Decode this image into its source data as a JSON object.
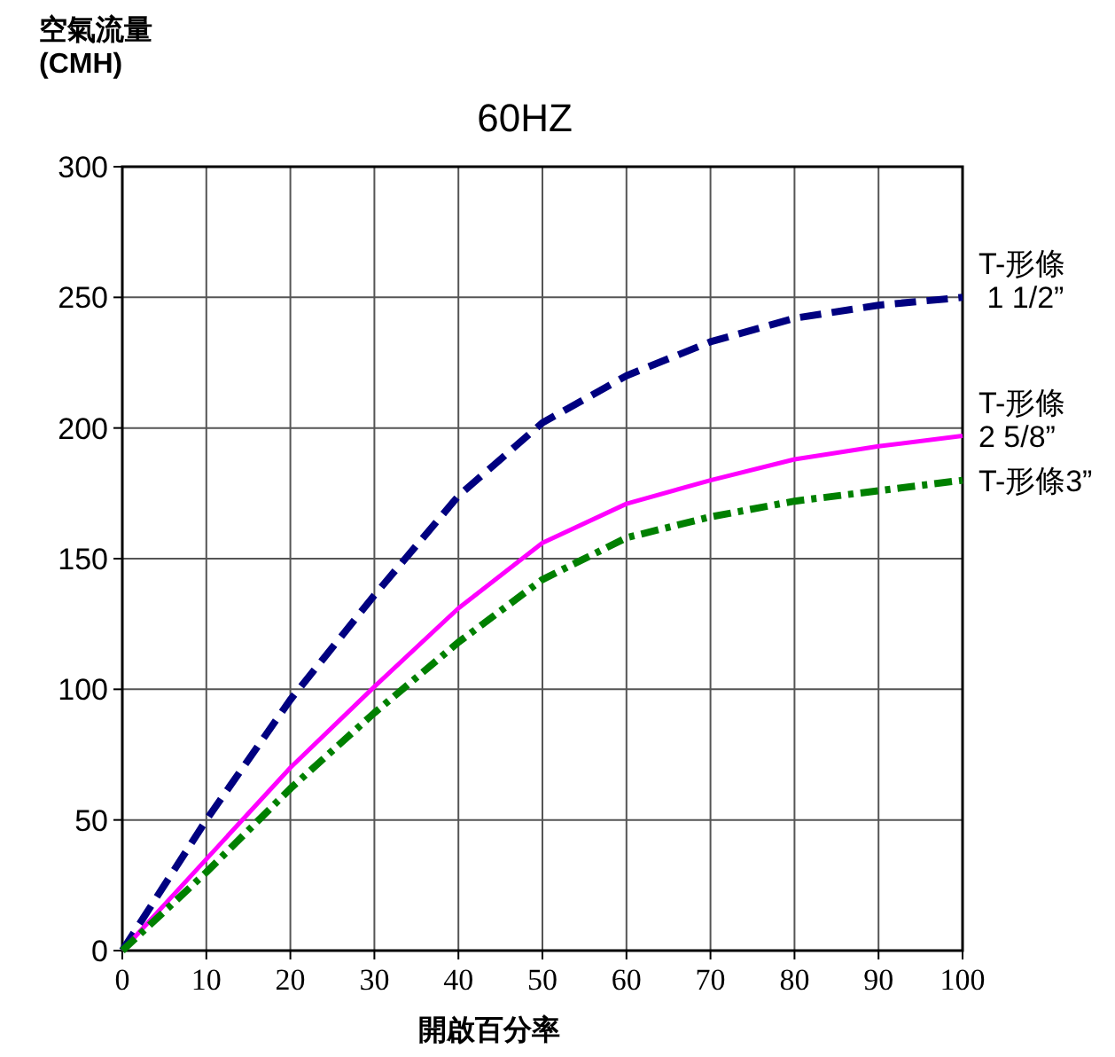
{
  "chart_data": {
    "type": "line",
    "title": "60HZ",
    "ylabel": "空氣流量\n(CMH)",
    "xlabel": "開啟百分率",
    "x": [
      0,
      10,
      20,
      30,
      40,
      50,
      60,
      70,
      80,
      90,
      100
    ],
    "xlim": [
      0,
      100
    ],
    "xticks": [
      0,
      10,
      20,
      30,
      40,
      50,
      60,
      70,
      80,
      90,
      100
    ],
    "ylim": [
      0,
      300
    ],
    "yticks": [
      0,
      50,
      100,
      150,
      200,
      250,
      300
    ],
    "grid": true,
    "legend": "right",
    "marker": "none",
    "series": [
      {
        "name": "T-形條\n 1 1/2”",
        "color": "#000080",
        "line_style": "dashed",
        "values": [
          0,
          50,
          96,
          136,
          174,
          202,
          220,
          233,
          242,
          247,
          250
        ]
      },
      {
        "name": "T-形條\n2 5/8”",
        "color": "#ff00ff",
        "line_style": "solid",
        "values": [
          0,
          35,
          70,
          101,
          131,
          156,
          171,
          180,
          188,
          193,
          197
        ]
      },
      {
        "name": "T-形條3”",
        "color": "#008000",
        "line_style": "dashdot",
        "values": [
          0,
          30,
          62,
          91,
          118,
          142,
          158,
          166,
          172,
          176,
          180
        ]
      }
    ]
  }
}
